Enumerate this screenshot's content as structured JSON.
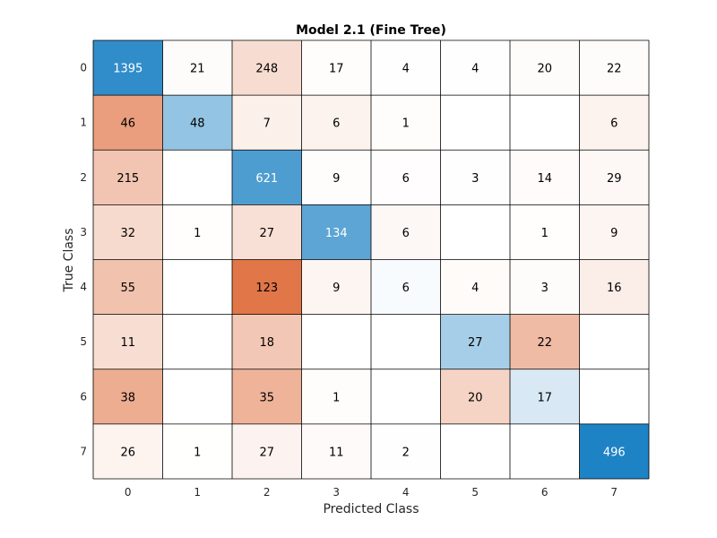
{
  "chart_data": {
    "type": "heatmap",
    "title": "Model 2.1 (Fine Tree)",
    "xlabel": "Predicted Class",
    "ylabel": "True Class",
    "x_categories": [
      "0",
      "1",
      "2",
      "3",
      "4",
      "5",
      "6",
      "7"
    ],
    "y_categories": [
      "0",
      "1",
      "2",
      "3",
      "4",
      "5",
      "6",
      "7"
    ],
    "values": [
      [
        1395,
        21,
        248,
        17,
        4,
        4,
        20,
        22
      ],
      [
        46,
        48,
        7,
        6,
        1,
        null,
        null,
        6
      ],
      [
        215,
        null,
        621,
        9,
        6,
        3,
        14,
        29
      ],
      [
        32,
        1,
        27,
        134,
        6,
        null,
        1,
        9
      ],
      [
        55,
        null,
        123,
        9,
        6,
        4,
        3,
        16
      ],
      [
        11,
        null,
        18,
        null,
        null,
        27,
        22,
        null
      ],
      [
        38,
        null,
        35,
        1,
        null,
        20,
        17,
        null
      ],
      [
        26,
        1,
        27,
        11,
        2,
        null,
        null,
        496
      ]
    ],
    "colors": {
      "diagonal_max": "#0072bd",
      "off_diagonal_max": "#d95319",
      "background": "#ffffff",
      "grid_line": "#000000",
      "text": "#262626",
      "text_on_dark": "#ffffff"
    }
  }
}
